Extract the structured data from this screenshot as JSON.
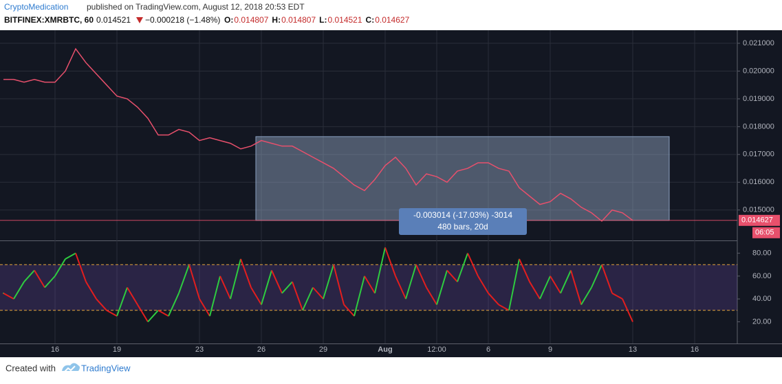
{
  "header": {
    "author": "CryptoMedication",
    "published": "published on TradingView.com, August 12, 2018 20:53 EDT",
    "symbol": "BITFINEX:XMRBTC, 60",
    "last": "0.014521",
    "change": "−0.000218 (−1.48%)",
    "ohlc": [
      {
        "key": "O:",
        "value": "0.014807"
      },
      {
        "key": "H:",
        "value": "0.014807"
      },
      {
        "key": "L:",
        "value": "0.014521"
      },
      {
        "key": "C:",
        "value": "0.014627"
      }
    ]
  },
  "chart_data": [
    {
      "type": "line",
      "color": "#e8506c",
      "grid": true,
      "countdown": "06:05",
      "categories": [
        null,
        null,
        null,
        null,
        null,
        "16",
        null,
        null,
        null,
        null,
        null,
        "19",
        null,
        null,
        null,
        null,
        null,
        null,
        null,
        "23",
        null,
        null,
        null,
        null,
        null,
        "26",
        null,
        null,
        null,
        null,
        null,
        "29",
        null,
        null,
        null,
        null,
        null,
        "Aug",
        null,
        null,
        null,
        null,
        "12:00",
        null,
        null,
        null,
        null,
        "6",
        null,
        null,
        null,
        null,
        null,
        "9",
        null,
        null,
        null,
        null,
        null,
        null,
        null,
        "13",
        null,
        null,
        null,
        null,
        null,
        "16",
        null,
        null,
        null
      ],
      "values": [
        0.0197,
        0.0197,
        0.0196,
        0.0197,
        0.0196,
        0.0196,
        0.02,
        0.0208,
        0.0203,
        0.0199,
        0.0195,
        0.0191,
        0.019,
        0.0187,
        0.0183,
        0.0177,
        0.0177,
        0.0179,
        0.0178,
        0.0175,
        0.0176,
        0.0175,
        0.0174,
        0.0172,
        0.0173,
        0.0175,
        0.0174,
        0.0173,
        0.0173,
        0.0171,
        0.0169,
        0.0167,
        0.0165,
        0.0162,
        0.0159,
        0.0157,
        0.0161,
        0.0166,
        0.0169,
        0.0165,
        0.0159,
        0.0163,
        0.0162,
        0.016,
        0.0164,
        0.0165,
        0.0167,
        0.0167,
        0.0165,
        0.0164,
        0.0158,
        0.0155,
        0.0152,
        0.0153,
        0.0156,
        0.0154,
        0.0151,
        0.0149,
        0.0146,
        0.015,
        0.0149,
        0.014627,
        null,
        null,
        null,
        null,
        null,
        null,
        null,
        null,
        null
      ],
      "ylim": [
        0.01393,
        0.02147
      ],
      "yticks": [
        {
          "value": 0.015,
          "label": "0.015000"
        },
        {
          "value": 0.016,
          "label": "0.016000"
        },
        {
          "value": 0.017,
          "label": "0.017000"
        },
        {
          "value": 0.018,
          "label": "0.018000"
        },
        {
          "value": 0.019,
          "label": "0.019000"
        },
        {
          "value": 0.02,
          "label": "0.020000"
        },
        {
          "value": 0.021,
          "label": "0.021000"
        }
      ],
      "measure": {
        "label": "-0.003014 (-17.03%) -3014",
        "sublabel": "480 bars, 20d",
        "price_range": [
          0.014627,
          0.017641
        ]
      }
    },
    {
      "type": "rsi",
      "up_color": "#2ecc40",
      "down_color": "#e31e1e",
      "levels": [
        30,
        70
      ],
      "values": [
        45,
        40,
        55,
        65,
        50,
        60,
        75,
        80,
        55,
        40,
        30,
        25,
        50,
        35,
        20,
        30,
        25,
        45,
        70,
        40,
        25,
        60,
        40,
        75,
        50,
        35,
        65,
        45,
        55,
        30,
        50,
        40,
        70,
        35,
        25,
        60,
        45,
        85,
        60,
        40,
        70,
        50,
        35,
        65,
        55,
        80,
        60,
        45,
        35,
        30,
        75,
        55,
        40,
        60,
        45,
        65,
        35,
        50,
        70,
        45,
        40,
        20,
        null,
        null,
        null,
        null,
        null,
        null,
        null,
        null,
        null
      ],
      "ylim": [
        1,
        90
      ],
      "yticks": [
        {
          "value": 20,
          "label": "20.00"
        },
        {
          "value": 40,
          "label": "40.00"
        },
        {
          "value": 60,
          "label": "60.00"
        },
        {
          "value": 80,
          "label": "80.00"
        }
      ]
    }
  ],
  "footer": {
    "created": "Created with",
    "brand": "TradingView"
  }
}
